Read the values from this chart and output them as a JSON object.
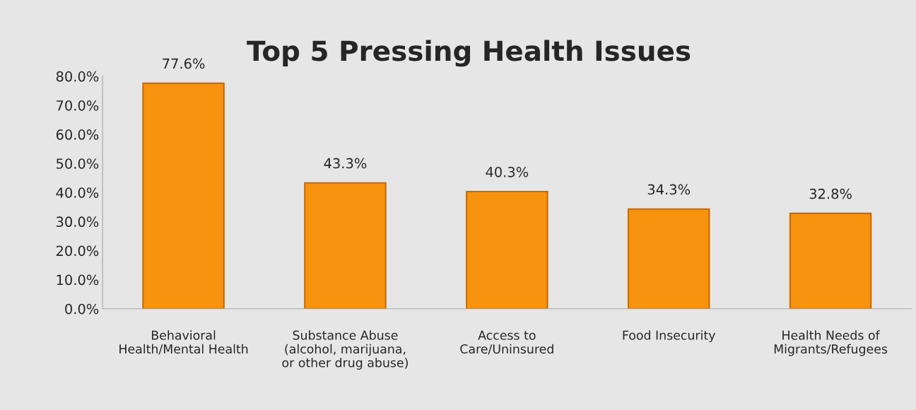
{
  "chart_data": {
    "type": "bar",
    "title": "Top 5 Pressing Health Issues",
    "categories": [
      "Behavioral\nHealth/Mental Health",
      "Substance Abuse\n(alcohol, marijuana,\nor other drug abuse)",
      "Access to\nCare/Uninsured",
      "Food Insecurity",
      "Health Needs of\nMigrants/Refugees"
    ],
    "values": [
      77.6,
      43.3,
      40.3,
      34.3,
      32.8
    ],
    "value_labels": [
      "77.6%",
      "43.3%",
      "40.3%",
      "34.3%",
      "32.8%"
    ],
    "color": "#f7930f",
    "ylim": [
      0,
      80
    ],
    "yticks": [
      {
        "value": 0,
        "label": "0.0%"
      },
      {
        "value": 10,
        "label": "10.0%"
      },
      {
        "value": 20,
        "label": "20.0%"
      },
      {
        "value": 30,
        "label": "30.0%"
      },
      {
        "value": 40,
        "label": "40.0%"
      },
      {
        "value": 50,
        "label": "50.0%"
      },
      {
        "value": 60,
        "label": "60.0%"
      },
      {
        "value": 70,
        "label": "70.0%"
      },
      {
        "value": 80,
        "label": "80.0%"
      }
    ],
    "grid": false,
    "legend": false
  }
}
